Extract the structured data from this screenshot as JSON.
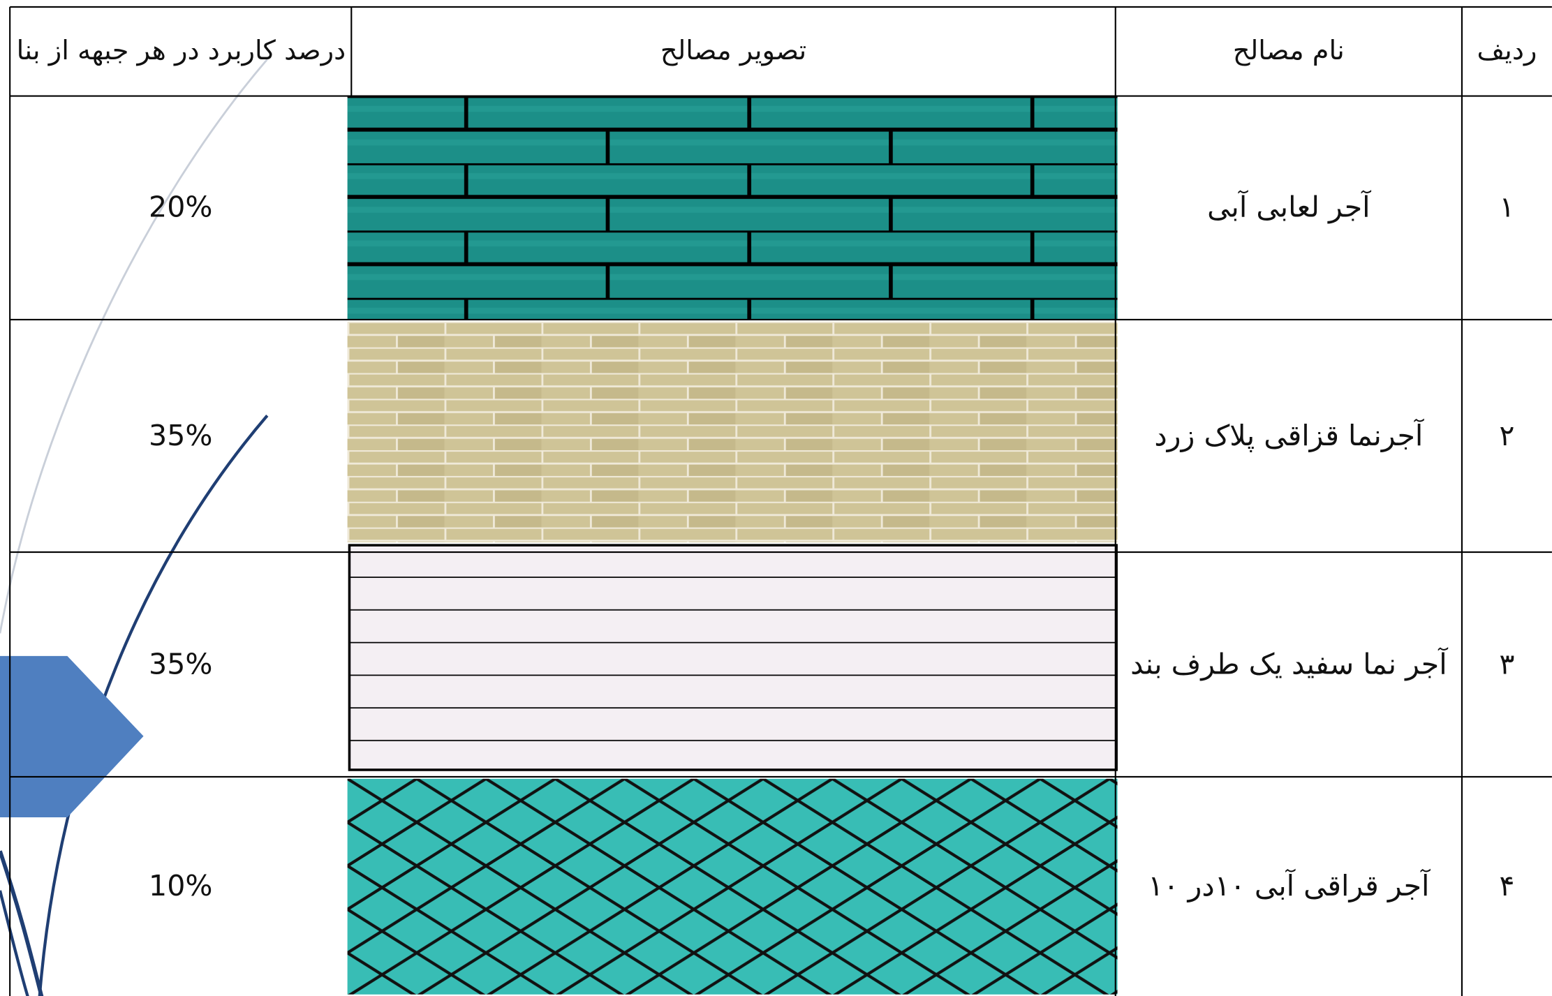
{
  "table": {
    "headers": [
      "ردیف",
      "نام مصالح",
      "تصویر مصالح",
      "درصد کاربرد در هر جبهه از بنا"
    ],
    "rows": [
      {
        "number": "۱",
        "name": "آجر لعابی آبی",
        "percent": "20%"
      },
      {
        "number": "۲",
        "name": "آجرنما قزاقی پلاک زرد",
        "percent": "35%"
      },
      {
        "number": "۳",
        "name": "آجر نما سفید یک طرف بند",
        "percent": "35%"
      },
      {
        "number": "۴",
        "name": "آجر قراقی آبی ۱۰در ۱۰",
        "percent": "10%"
      }
    ]
  }
}
